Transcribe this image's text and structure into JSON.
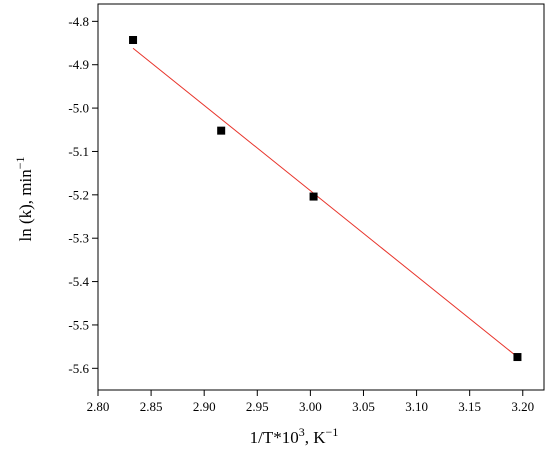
{
  "chart_data": {
    "type": "scatter",
    "title": "",
    "xlabel": "1/T*10",
    "xlabel_sup": "3",
    "xlabel_unit": ", K",
    "xlabel_unit_sup": "−1",
    "ylabel": "ln (k), min",
    "ylabel_sup": "−1",
    "xlim": [
      2.8,
      3.22
    ],
    "ylim": [
      -5.65,
      -4.76
    ],
    "x_ticks": [
      "2.80",
      "2.85",
      "2.90",
      "2.95",
      "3.00",
      "3.05",
      "3.10",
      "3.15",
      "3.20"
    ],
    "y_ticks": [
      "-4.8",
      "-4.9",
      "-5.0",
      "-5.1",
      "-5.2",
      "-5.3",
      "-5.4",
      "-5.5",
      "-5.6"
    ],
    "grid": false,
    "legend": "none",
    "series": [
      {
        "marker": "square",
        "color": "#000000",
        "points": [
          {
            "x": 2.833,
            "y": -4.843
          },
          {
            "x": 2.916,
            "y": -5.052
          },
          {
            "x": 3.003,
            "y": -5.204
          },
          {
            "x": 3.195,
            "y": -5.574
          }
        ]
      }
    ],
    "fit_line": {
      "color": "#e8332a",
      "x": [
        2.833,
        3.195
      ],
      "y": [
        -4.862,
        -5.574
      ]
    }
  }
}
